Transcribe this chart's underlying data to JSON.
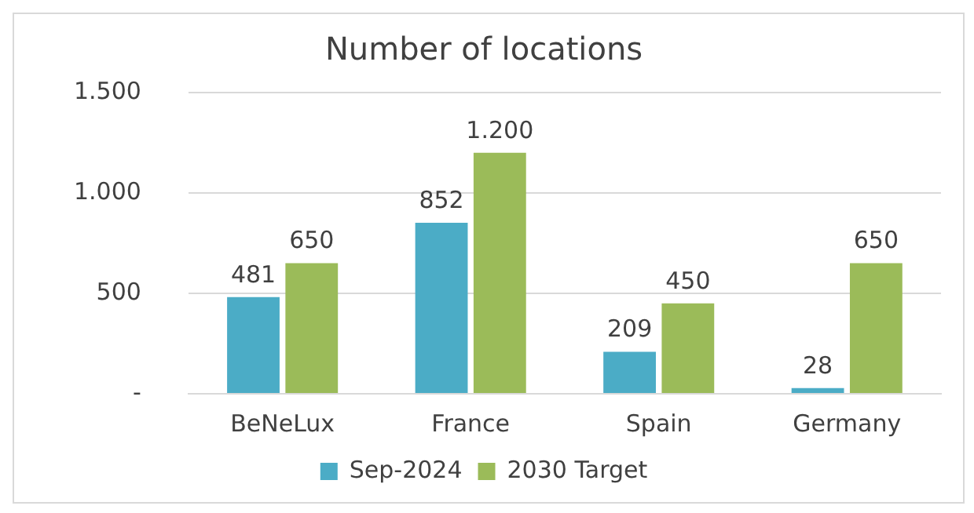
{
  "chart_data": {
    "type": "bar",
    "title": "Number of locations",
    "categories": [
      "BeNeLux",
      "France",
      "Spain",
      "Germany"
    ],
    "series": [
      {
        "name": "Sep-2024",
        "color": "#4bacc6",
        "values": [
          481,
          852,
          209,
          28
        ],
        "value_labels": [
          "481",
          "852",
          "209",
          "28"
        ]
      },
      {
        "name": "2030 Target",
        "color": "#9bbb59",
        "values": [
          650,
          1200,
          450,
          650
        ],
        "value_labels": [
          "650",
          "1.200",
          "450",
          "650"
        ]
      }
    ],
    "ylim": [
      0,
      1500
    ],
    "yticks": [
      {
        "value": 0,
        "label": "-"
      },
      {
        "value": 500,
        "label": "500"
      },
      {
        "value": 1000,
        "label": "1.000"
      },
      {
        "value": 1500,
        "label": "1.500"
      }
    ],
    "grid": "y",
    "legend": "bottom"
  }
}
